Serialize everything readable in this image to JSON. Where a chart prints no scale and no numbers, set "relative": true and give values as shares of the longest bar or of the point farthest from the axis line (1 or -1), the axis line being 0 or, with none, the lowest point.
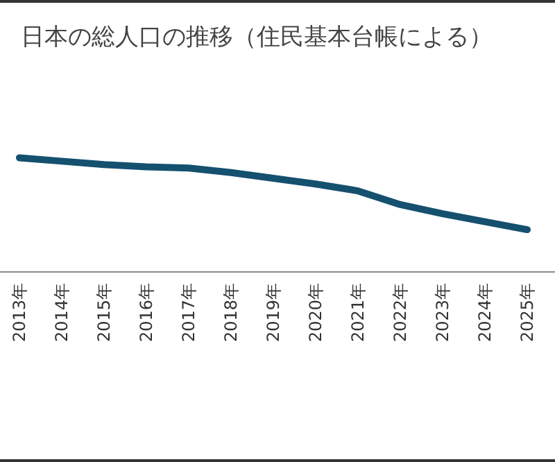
{
  "chart_data": {
    "type": "line",
    "title": "日本の総人口の推移（住民基本台帳による）",
    "categories": [
      "2013年",
      "2014年",
      "2015年",
      "2016年",
      "2017年",
      "2018年",
      "2019年",
      "2020年",
      "2021年",
      "2022年",
      "2023年",
      "2024年",
      "2025年"
    ],
    "values": [
      1,
      0.97,
      0.94,
      0.92,
      0.91,
      0.87,
      0.82,
      0.77,
      0.71,
      0.59,
      0.51,
      0.44,
      0.37
    ],
    "color": "#15506f",
    "relative": true,
    "marker": "none"
  }
}
